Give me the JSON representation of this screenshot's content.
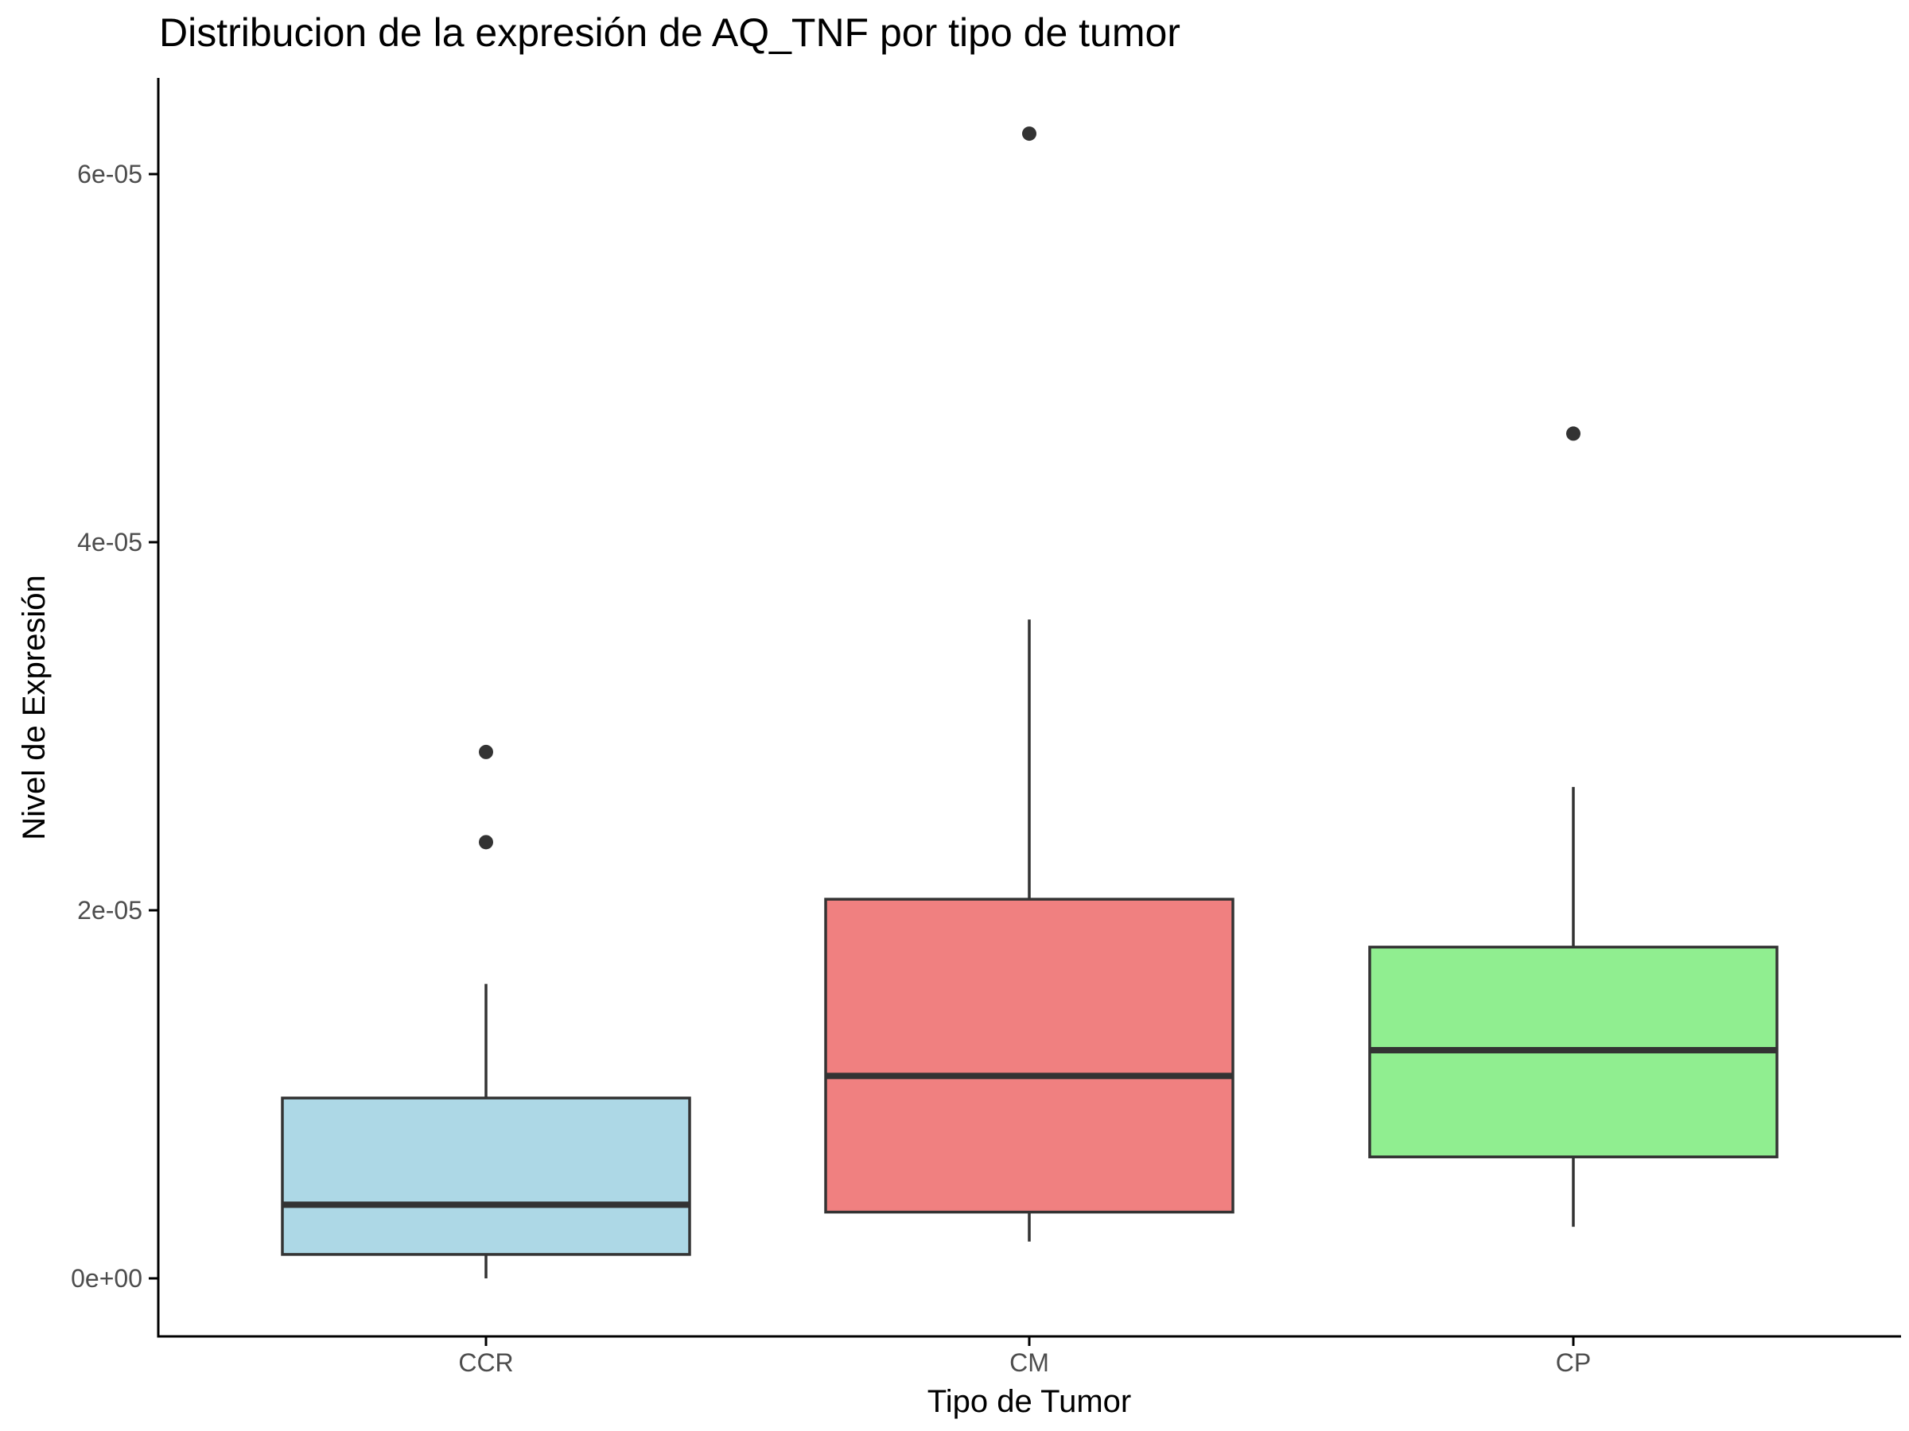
{
  "chart_data": {
    "type": "boxplot",
    "title": "Distribucion de la expresión de AQ_TNF por tipo de tumor",
    "xlabel": "Tipo de Tumor",
    "ylabel": "Nivel de Expresión",
    "categories": [
      "CCR",
      "CM",
      "CP"
    ],
    "y_ticks": [
      0,
      2e-05,
      4e-05,
      6e-05
    ],
    "y_tick_labels": [
      "0e+00",
      "2e-05",
      "4e-05",
      "6e-05"
    ],
    "ylim": [
      -3e-06,
      6.52e-05
    ],
    "grid": false,
    "legend": "none",
    "boxes": [
      {
        "category": "CCR",
        "fill": "#add8e6",
        "whisker_low": 0.0,
        "q1": 1.3e-06,
        "median": 4e-06,
        "q3": 9.8e-06,
        "whisker_high": 1.6e-05,
        "outliers": [
          2.37e-05,
          2.86e-05
        ]
      },
      {
        "category": "CM",
        "fill": "#f08080",
        "whisker_low": 2e-06,
        "q1": 3.6e-06,
        "median": 1.1e-05,
        "q3": 2.06e-05,
        "whisker_high": 3.58e-05,
        "outliers": [
          6.22e-05
        ]
      },
      {
        "category": "CP",
        "fill": "#90ee90",
        "whisker_low": 2.8e-06,
        "q1": 6.6e-06,
        "median": 1.24e-05,
        "q3": 1.8e-05,
        "whisker_high": 2.67e-05,
        "outliers": [
          4.59e-05
        ]
      }
    ],
    "stroke_color": "#333333"
  }
}
